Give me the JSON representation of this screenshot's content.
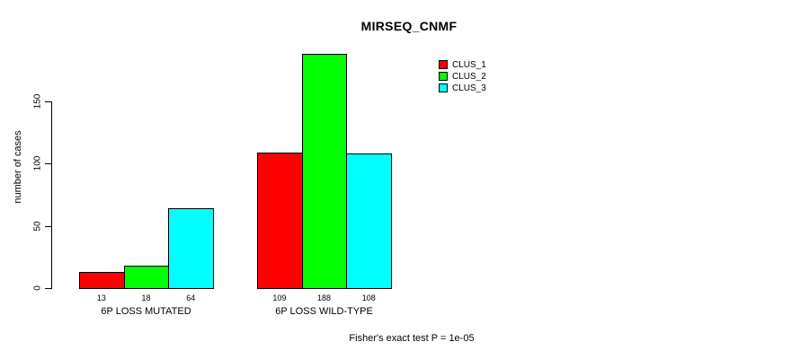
{
  "chart_data": {
    "type": "bar",
    "title": "MIRSEQ_CNMF",
    "ylabel": "number of cases",
    "xlabel": "",
    "ylim": [
      0,
      150
    ],
    "yticks": [
      0,
      50,
      100,
      150
    ],
    "grid": false,
    "legend_position": "top-right-inside",
    "categories": [
      "6P LOSS MUTATED",
      "6P LOSS WILD-TYPE"
    ],
    "series": [
      {
        "name": "CLUS_1",
        "color": "#ff0000",
        "values": [
          13,
          109
        ]
      },
      {
        "name": "CLUS_2",
        "color": "#00ff00",
        "values": [
          18,
          188
        ]
      },
      {
        "name": "CLUS_3",
        "color": "#00ffff",
        "values": [
          64,
          108
        ]
      }
    ],
    "bar_value_labels": [
      [
        "13",
        "18",
        "64"
      ],
      [
        "109",
        "188",
        "108"
      ]
    ],
    "annotation": "Fisher's exact test P = 1e-05"
  },
  "colors": {
    "background": "#ffffff",
    "axis": "#000000",
    "bar_border": "#000000",
    "text": "#000000"
  }
}
